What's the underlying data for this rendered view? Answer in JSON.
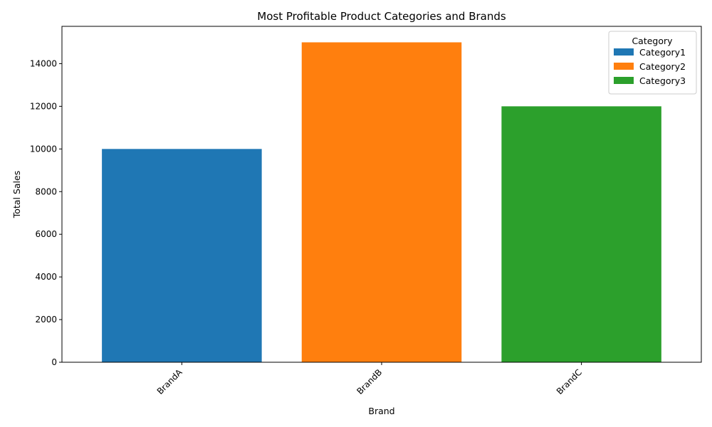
{
  "chart_data": {
    "type": "bar",
    "title": "Most Profitable Product Categories and Brands",
    "xlabel": "Brand",
    "ylabel": "Total Sales",
    "categories": [
      "BrandA",
      "BrandB",
      "BrandC"
    ],
    "series": [
      {
        "name": "Category1",
        "values": [
          10000,
          null,
          null
        ],
        "color": "#1f77b4"
      },
      {
        "name": "Category2",
        "values": [
          null,
          15000,
          null
        ],
        "color": "#ff7f0e"
      },
      {
        "name": "Category3",
        "values": [
          null,
          null,
          12000
        ],
        "color": "#2ca02c"
      }
    ],
    "ylim": [
      0,
      15750
    ],
    "yticks": [
      "0",
      "2000",
      "4000",
      "6000",
      "8000",
      "10000",
      "12000",
      "14000"
    ],
    "grid": false,
    "legend": {
      "title": "Category",
      "placement": "top-right"
    }
  }
}
